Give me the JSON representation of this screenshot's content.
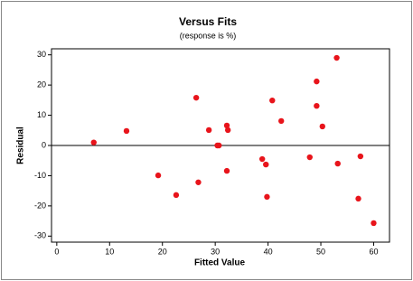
{
  "chart_data": {
    "type": "scatter",
    "title": "Versus Fits",
    "subtitle": "(response is %)",
    "x_label": "Fitted Value",
    "y_label": "Residual",
    "x": [
      7,
      13.2,
      19.2,
      22.6,
      26.4,
      26.8,
      28.8,
      30.4,
      30.7,
      32.2,
      32.4,
      32.2,
      38.9,
      39.6,
      39.8,
      40.8,
      42.5,
      47.9,
      49.2,
      49.2,
      50.3,
      53,
      53.2,
      57.5,
      57.1,
      60
    ],
    "values": [
      1,
      4.8,
      -9.9,
      -16.4,
      15.8,
      -12.2,
      5.1,
      0,
      0,
      6.6,
      5.1,
      -8.4,
      -4.5,
      -6.3,
      -17,
      14.9,
      8.1,
      -3.9,
      21.2,
      13.1,
      6.3,
      29,
      -6,
      -3.6,
      -17.6,
      -25.7
    ],
    "color": "#e8141b",
    "reference_line": 0,
    "xlim": [
      -1,
      63
    ],
    "xticks": [
      0,
      10,
      20,
      30,
      40,
      50,
      60
    ],
    "ylim": [
      -32,
      32
    ],
    "yticks": [
      -30,
      -20,
      -10,
      0,
      10,
      20,
      30
    ]
  }
}
